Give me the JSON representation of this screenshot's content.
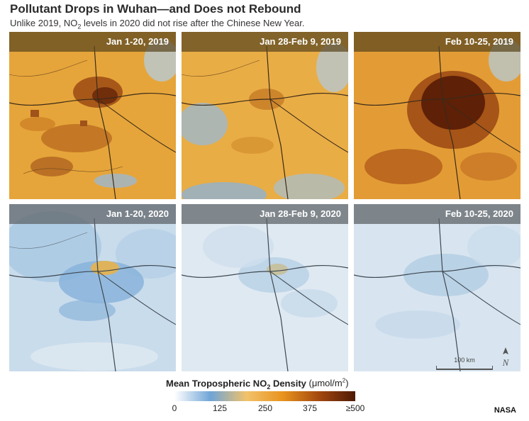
{
  "title": "Pollutant Drops in Wuhan—and Does not Rebound",
  "subtitle": {
    "part1": "Unlike 2019, NO",
    "sub": "2",
    "part2": " levels in 2020 did not rise after the Chinese New Year."
  },
  "panels": {
    "p2019_1": {
      "label": "Jan 1-20, 2019"
    },
    "p2019_2": {
      "label": "Jan 28-Feb 9, 2019"
    },
    "p2019_3": {
      "label": "Feb 10-25, 2019"
    },
    "p2020_1": {
      "label": "Jan 1-20, 2020"
    },
    "p2020_2": {
      "label": "Jan 28-Feb 9, 2020"
    },
    "p2020_3": {
      "label": "Feb 10-25, 2020"
    }
  },
  "scale_label": "100 km",
  "north_label": "N",
  "legend": {
    "title_main": "Mean Tropospheric NO",
    "title_sub": "2",
    "title_rest": " Density",
    "unit_open": " (μmol/m",
    "unit_sup": "2",
    "unit_close": ")",
    "ticks": [
      "0",
      "125",
      "250",
      "375",
      "≥500"
    ],
    "colors": [
      "#ffffff",
      "#6fa4d6",
      "#f2c26a",
      "#e8931e",
      "#a3480f",
      "#4e1a05"
    ]
  },
  "credit": "NASA"
}
